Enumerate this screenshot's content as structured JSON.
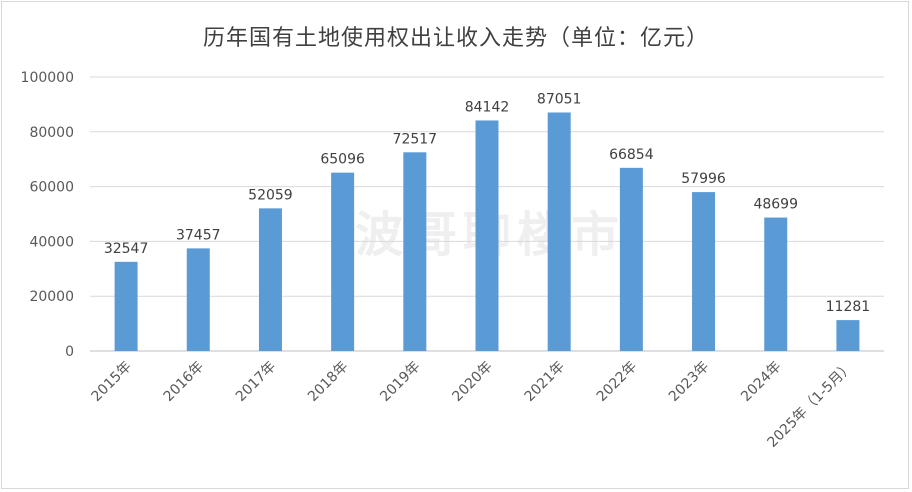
{
  "chart_data": {
    "type": "bar",
    "title": "历年国有土地使用权出让收入走势（单位：亿元）",
    "categories": [
      "2015年",
      "2016年",
      "2017年",
      "2018年",
      "2019年",
      "2020年",
      "2021年",
      "2022年",
      "2023年",
      "2024年",
      "2025年（1-5月）"
    ],
    "values": [
      32547,
      37457,
      52059,
      65096,
      72517,
      84142,
      87051,
      66854,
      57996,
      48699,
      11281
    ],
    "ylim": [
      0,
      100000
    ],
    "yticks": [
      0,
      20000,
      40000,
      60000,
      80000,
      100000
    ],
    "grid": true,
    "bar_color": "#5b9bd5",
    "data_labels": true
  },
  "watermark": "波哥聊楼市"
}
